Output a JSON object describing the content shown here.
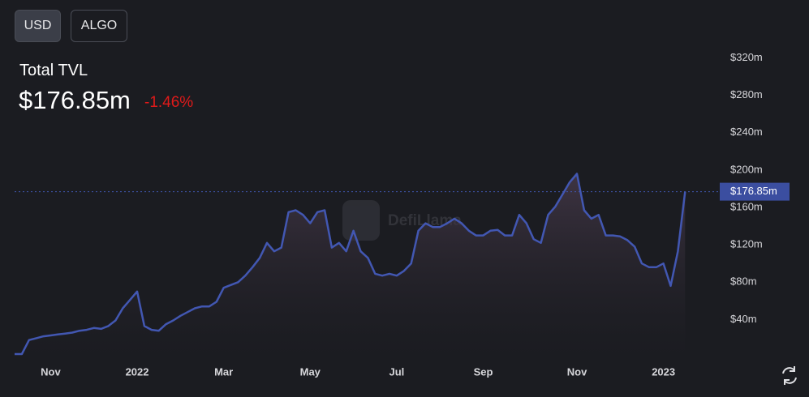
{
  "buttons": [
    "USD",
    "ALGO"
  ],
  "header": {
    "title": "Total TVL",
    "value": "$176.85m",
    "change": "-1.46%"
  },
  "watermark": "DefiLlama",
  "chart_data": {
    "type": "area",
    "categories": [
      null,
      null,
      null,
      null,
      null,
      "Nov",
      null,
      null,
      null,
      null,
      null,
      null,
      null,
      null,
      null,
      null,
      null,
      "2022",
      null,
      null,
      null,
      null,
      null,
      null,
      null,
      null,
      null,
      null,
      null,
      "Mar",
      null,
      null,
      null,
      null,
      null,
      null,
      null,
      null,
      null,
      null,
      null,
      "May",
      null,
      null,
      null,
      null,
      null,
      null,
      null,
      null,
      null,
      null,
      null,
      "Jul",
      null,
      null,
      null,
      null,
      null,
      null,
      null,
      null,
      null,
      null,
      null,
      "Sep",
      null,
      null,
      null,
      null,
      null,
      null,
      null,
      null,
      null,
      null,
      null,
      null,
      "Nov",
      null,
      null,
      null,
      null,
      null,
      null,
      null,
      null,
      null,
      null,
      null,
      "2023",
      null,
      null,
      null
    ],
    "series": [
      {
        "color": "#4257b2",
        "values": [
          3,
          3,
          18,
          20,
          22,
          23,
          24,
          25,
          26,
          28,
          29,
          31,
          30,
          33,
          39,
          52,
          61,
          70,
          33,
          29,
          28,
          35,
          39,
          44,
          48,
          52,
          54,
          54,
          59,
          74,
          77,
          80,
          87,
          96,
          106,
          122,
          113,
          117,
          155,
          157,
          152,
          143,
          155,
          157,
          117,
          122,
          113,
          135,
          113,
          106,
          89,
          87,
          89,
          87,
          92,
          100,
          135,
          143,
          139,
          139,
          143,
          148,
          143,
          135,
          130,
          130,
          135,
          136,
          130,
          130,
          152,
          143,
          126,
          122,
          152,
          161,
          174,
          187,
          196,
          157,
          148,
          152,
          130,
          130,
          129,
          125,
          118,
          100,
          96,
          96,
          100,
          76,
          113,
          176.85
        ]
      }
    ],
    "ylim": [
      0,
      330
    ],
    "yticks": [
      {
        "value": 40,
        "label": "$40m"
      },
      {
        "value": 80,
        "label": "$80m"
      },
      {
        "value": 120,
        "label": "$120m"
      },
      {
        "value": 160,
        "label": "$160m"
      },
      {
        "value": 200,
        "label": "$200m"
      },
      {
        "value": 240,
        "label": "$240m"
      },
      {
        "value": 280,
        "label": "$280m"
      },
      {
        "value": 320,
        "label": "$320m"
      }
    ],
    "price_line": {
      "value": 176.85,
      "label": "$176.85m"
    }
  }
}
